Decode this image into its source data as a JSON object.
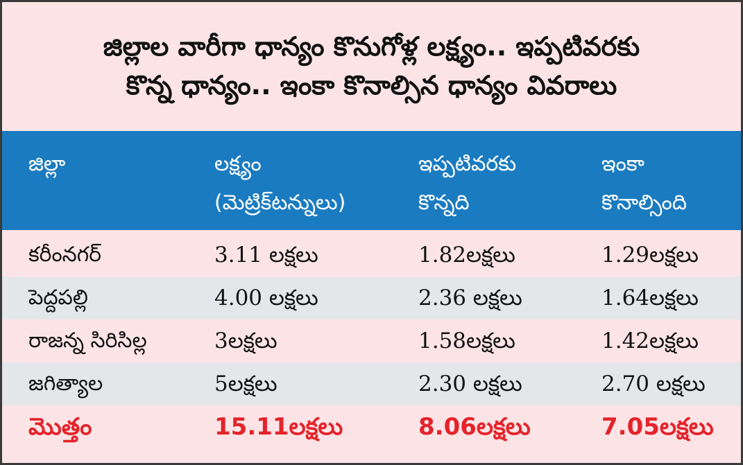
{
  "title": {
    "line1": "జిల్లాల వారీగా ధాన్యం కొనుగోళ్ల లక్ష్యం.. ఇప్పటివరకు",
    "line2": "కొన్న ధాన్యం.. ఇంకా కొనాల్సిన ధాన్యం వివరాలు"
  },
  "table": {
    "headers": {
      "district": "జిల్లా",
      "target_line1": "లక్ష్యం",
      "target_line2": "(మెట్రిక్‌టన్నులు)",
      "bought_line1": "ఇప్పటివరకు",
      "bought_line2": "కొన్నది",
      "remaining_line1": "ఇంకా",
      "remaining_line2": "కొనాల్సింది"
    },
    "rows": [
      {
        "district": "కరీంనగర్‌",
        "target": "3.11 లక్షలు",
        "bought": "1.82లక్షలు",
        "remaining": "1.29లక్షలు"
      },
      {
        "district": "పెద్దపల్లి",
        "target": "4.00 లక్షలు",
        "bought": "2.36 లక్షలు",
        "remaining": "1.64లక్షలు"
      },
      {
        "district": "రాజన్న సిరిసిల్ల",
        "target": "3లక్షలు",
        "bought": "1.58లక్షలు",
        "remaining": "1.42లక్షలు"
      },
      {
        "district": "జగిత్యాల",
        "target": "5లక్షలు",
        "bought": "2.30 లక్షలు",
        "remaining": "2.70 లక్షలు"
      }
    ],
    "total": {
      "district": "మొత్తం",
      "target": "15.11లక్షలు",
      "bought": "8.06లక్షలు",
      "remaining": "7.05లక్షలు"
    }
  },
  "colors": {
    "header_bg": "#1b7bc0",
    "row_pink": "#fce4e6",
    "row_grey": "#e4e7ea",
    "total_text": "#e4232b"
  }
}
